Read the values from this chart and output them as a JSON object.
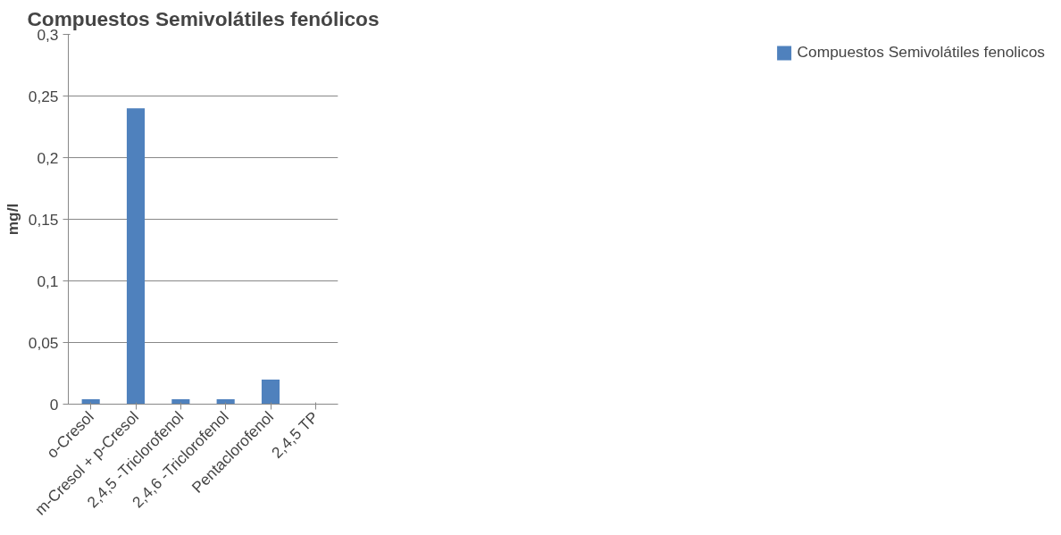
{
  "chart_data": {
    "type": "bar",
    "title": "Compuestos Semivolátiles fenólicos",
    "ylabel": "mg/l",
    "categories": [
      "o-Cresol",
      "m-Cresol + p-Cresol",
      "2,4,5 -Triclorofenol",
      "2,4,6 -Triclorofenol",
      "Pentaclorofenol",
      "2,4,5 TP"
    ],
    "series": [
      {
        "name": "Compuestos Semivolátiles fenolicos",
        "color": "#4f81bd",
        "values": [
          0.004,
          0.24,
          0.004,
          0.004,
          0.02,
          0
        ]
      }
    ],
    "ylim": [
      0,
      0.3
    ],
    "yticks": [
      {
        "value": 0,
        "label": "0"
      },
      {
        "value": 0.05,
        "label": "0,05"
      },
      {
        "value": 0.1,
        "label": "0,1"
      },
      {
        "value": 0.15,
        "label": "0,15"
      },
      {
        "value": 0.2,
        "label": "0,2"
      },
      {
        "value": 0.25,
        "label": "0,25"
      },
      {
        "value": 0.3,
        "label": "0,3"
      }
    ],
    "grid": "y",
    "legend": "right"
  }
}
